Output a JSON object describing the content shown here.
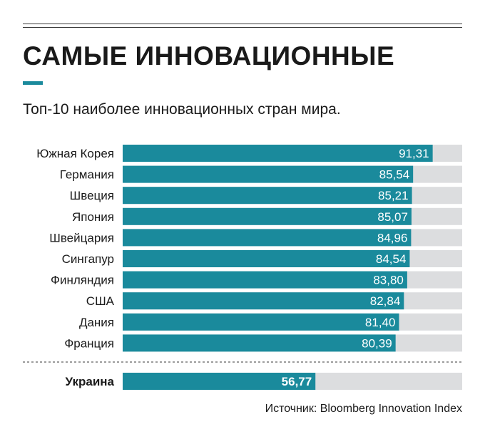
{
  "title": "САМЫЕ ИННОВАЦИОННЫЕ",
  "subtitle": "Топ-10 наиболее инновационных стран мира.",
  "source": "Источник: Bloomberg Innovation Index",
  "colors": {
    "bar": "#1a8a9c",
    "track": "#dcdddf",
    "accent": "#1a8a9c",
    "text": "#1a1a1a"
  },
  "chart_data": {
    "type": "bar",
    "orientation": "horizontal",
    "xlim": [
      0,
      100
    ],
    "categories": [
      "Южная Корея",
      "Германия",
      "Швеция",
      "Япония",
      "Швейцария",
      "Сингапур",
      "Финляндия",
      "США",
      "Дания",
      "Франция"
    ],
    "values": [
      91.31,
      85.54,
      85.21,
      85.07,
      84.96,
      84.54,
      83.8,
      82.84,
      81.4,
      80.39
    ],
    "value_labels": [
      "91,31",
      "85,54",
      "85,21",
      "85,07",
      "84,96",
      "84,54",
      "83,80",
      "82,84",
      "81,40",
      "80,39"
    ],
    "highlight": {
      "category": "Украина",
      "value": 56.77,
      "value_label": "56,77"
    }
  }
}
